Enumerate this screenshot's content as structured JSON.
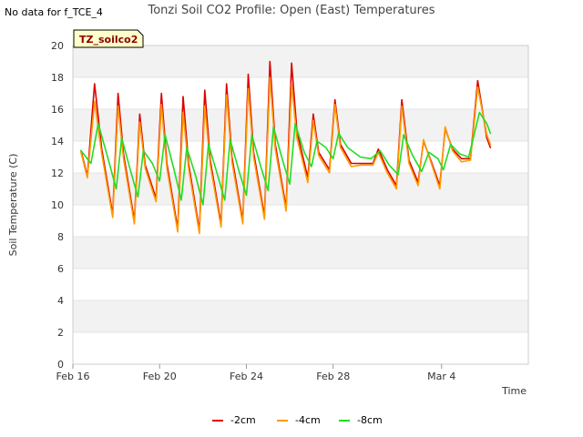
{
  "no_data_message": "No data for f_TCE_4",
  "chart_data": {
    "type": "line",
    "title": "Tonzi Soil CO2 Profile: Open (East) Temperatures",
    "xlabel": "Time",
    "ylabel": "Soil Temperature (C)",
    "badge": "TZ_soilco2",
    "ylim": [
      0,
      20
    ],
    "yticks": [
      0,
      2,
      4,
      6,
      8,
      10,
      12,
      14,
      16,
      18,
      20
    ],
    "xlim": [
      "2024-02-16",
      "2024-03-08"
    ],
    "xticks": [
      {
        "date": "2024-02-16",
        "label": "Feb 16"
      },
      {
        "date": "2024-02-20",
        "label": "Feb 20"
      },
      {
        "date": "2024-02-24",
        "label": "Feb 24"
      },
      {
        "date": "2024-02-28",
        "label": "Feb 28"
      },
      {
        "date": "2024-03-04",
        "label": "Mar 4"
      }
    ],
    "grid": true,
    "legend_position": "bottom",
    "series": [
      {
        "name": "-2cm",
        "color": "#dd0000",
        "points": [
          [
            "2024-02-16T09:00",
            13.4
          ],
          [
            "2024-02-16T16:00",
            11.8
          ],
          [
            "2024-02-17T00:00",
            17.6
          ],
          [
            "2024-02-17T08:00",
            13.5
          ],
          [
            "2024-02-17T20:00",
            9.4
          ],
          [
            "2024-02-18T02:00",
            17.0
          ],
          [
            "2024-02-18T08:00",
            13.2
          ],
          [
            "2024-02-18T20:00",
            9.0
          ],
          [
            "2024-02-19T02:00",
            15.7
          ],
          [
            "2024-02-19T08:00",
            12.5
          ],
          [
            "2024-02-19T20:00",
            10.4
          ],
          [
            "2024-02-20T02:00",
            17.0
          ],
          [
            "2024-02-20T08:00",
            12.6
          ],
          [
            "2024-02-20T20:00",
            8.5
          ],
          [
            "2024-02-21T02:00",
            16.8
          ],
          [
            "2024-02-21T08:00",
            12.6
          ],
          [
            "2024-02-21T20:00",
            8.4
          ],
          [
            "2024-02-22T02:00",
            17.2
          ],
          [
            "2024-02-22T08:00",
            12.8
          ],
          [
            "2024-02-22T20:00",
            8.8
          ],
          [
            "2024-02-23T02:00",
            17.6
          ],
          [
            "2024-02-23T08:00",
            13.0
          ],
          [
            "2024-02-23T20:00",
            9.0
          ],
          [
            "2024-02-24T02:00",
            18.2
          ],
          [
            "2024-02-24T08:00",
            13.3
          ],
          [
            "2024-02-24T20:00",
            9.3
          ],
          [
            "2024-02-25T02:00",
            19.0
          ],
          [
            "2024-02-25T08:00",
            13.8
          ],
          [
            "2024-02-25T20:00",
            9.8
          ],
          [
            "2024-02-26T02:00",
            18.9
          ],
          [
            "2024-02-26T08:00",
            14.6
          ],
          [
            "2024-02-26T20:00",
            11.7
          ],
          [
            "2024-02-27T02:00",
            15.7
          ],
          [
            "2024-02-27T08:00",
            13.3
          ],
          [
            "2024-02-27T20:00",
            12.2
          ],
          [
            "2024-02-28T02:00",
            16.6
          ],
          [
            "2024-02-28T08:00",
            13.8
          ],
          [
            "2024-02-28T20:00",
            12.6
          ],
          [
            "2024-02-29T06:00",
            12.6
          ],
          [
            "2024-02-29T20:00",
            12.6
          ],
          [
            "2024-03-01T02:00",
            13.5
          ],
          [
            "2024-03-01T12:00",
            12.2
          ],
          [
            "2024-03-01T22:00",
            11.2
          ],
          [
            "2024-03-02T04:00",
            16.6
          ],
          [
            "2024-03-02T12:00",
            12.8
          ],
          [
            "2024-03-02T22:00",
            11.4
          ],
          [
            "2024-03-03T04:00",
            14.0
          ],
          [
            "2024-03-03T12:00",
            12.8
          ],
          [
            "2024-03-03T22:00",
            11.2
          ],
          [
            "2024-03-04T04:00",
            14.8
          ],
          [
            "2024-03-04T12:00",
            13.5
          ],
          [
            "2024-03-04T22:00",
            12.9
          ],
          [
            "2024-03-05T08:00",
            12.9
          ],
          [
            "2024-03-05T16:00",
            17.8
          ],
          [
            "2024-03-06T02:00",
            14.2
          ],
          [
            "2024-03-06T06:00",
            13.6
          ]
        ]
      },
      {
        "name": "-4cm",
        "color": "#ff9900",
        "points": [
          [
            "2024-02-16T09:00",
            13.3
          ],
          [
            "2024-02-16T16:00",
            11.7
          ],
          [
            "2024-02-17T00:00",
            16.5
          ],
          [
            "2024-02-17T08:00",
            13.2
          ],
          [
            "2024-02-17T20:00",
            9.2
          ],
          [
            "2024-02-18T02:00",
            16.2
          ],
          [
            "2024-02-18T08:00",
            12.9
          ],
          [
            "2024-02-18T20:00",
            8.8
          ],
          [
            "2024-02-19T02:00",
            15.2
          ],
          [
            "2024-02-19T08:00",
            12.3
          ],
          [
            "2024-02-19T20:00",
            10.2
          ],
          [
            "2024-02-20T02:00",
            16.3
          ],
          [
            "2024-02-20T08:00",
            12.3
          ],
          [
            "2024-02-20T20:00",
            8.3
          ],
          [
            "2024-02-21T02:00",
            15.8
          ],
          [
            "2024-02-21T08:00",
            12.3
          ],
          [
            "2024-02-21T20:00",
            8.2
          ],
          [
            "2024-02-22T02:00",
            16.2
          ],
          [
            "2024-02-22T08:00",
            12.5
          ],
          [
            "2024-02-22T20:00",
            8.6
          ],
          [
            "2024-02-23T02:00",
            16.9
          ],
          [
            "2024-02-23T08:00",
            12.7
          ],
          [
            "2024-02-23T20:00",
            8.8
          ],
          [
            "2024-02-24T02:00",
            17.3
          ],
          [
            "2024-02-24T08:00",
            13.0
          ],
          [
            "2024-02-24T20:00",
            9.1
          ],
          [
            "2024-02-25T02:00",
            18.0
          ],
          [
            "2024-02-25T08:00",
            13.5
          ],
          [
            "2024-02-25T20:00",
            9.6
          ],
          [
            "2024-02-26T02:00",
            17.6
          ],
          [
            "2024-02-26T08:00",
            14.2
          ],
          [
            "2024-02-26T20:00",
            11.4
          ],
          [
            "2024-02-27T02:00",
            15.3
          ],
          [
            "2024-02-27T08:00",
            13.1
          ],
          [
            "2024-02-27T20:00",
            12.0
          ],
          [
            "2024-02-28T02:00",
            16.3
          ],
          [
            "2024-02-28T08:00",
            13.6
          ],
          [
            "2024-02-28T20:00",
            12.4
          ],
          [
            "2024-02-29T06:00",
            12.5
          ],
          [
            "2024-02-29T20:00",
            12.5
          ],
          [
            "2024-03-01T02:00",
            13.3
          ],
          [
            "2024-03-01T12:00",
            12.0
          ],
          [
            "2024-03-01T22:00",
            11.0
          ],
          [
            "2024-03-02T04:00",
            16.2
          ],
          [
            "2024-03-02T12:00",
            12.6
          ],
          [
            "2024-03-02T22:00",
            11.2
          ],
          [
            "2024-03-03T04:00",
            14.1
          ],
          [
            "2024-03-03T12:00",
            12.7
          ],
          [
            "2024-03-03T22:00",
            11.0
          ],
          [
            "2024-03-04T04:00",
            14.9
          ],
          [
            "2024-03-04T12:00",
            13.4
          ],
          [
            "2024-03-04T22:00",
            12.7
          ],
          [
            "2024-03-05T08:00",
            12.8
          ],
          [
            "2024-03-05T16:00",
            17.4
          ],
          [
            "2024-03-06T02:00",
            14.4
          ],
          [
            "2024-03-06T06:00",
            13.8
          ]
        ]
      },
      {
        "name": "-8cm",
        "color": "#22dd22",
        "points": [
          [
            "2024-02-16T09:00",
            13.4
          ],
          [
            "2024-02-16T20:00",
            12.6
          ],
          [
            "2024-02-17T04:00",
            15.1
          ],
          [
            "2024-02-17T14:00",
            13.1
          ],
          [
            "2024-02-18T00:00",
            11.0
          ],
          [
            "2024-02-18T06:00",
            14.2
          ],
          [
            "2024-02-18T16:00",
            12.1
          ],
          [
            "2024-02-19T00:00",
            10.5
          ],
          [
            "2024-02-19T06:00",
            13.4
          ],
          [
            "2024-02-19T16:00",
            12.6
          ],
          [
            "2024-02-20T00:00",
            11.5
          ],
          [
            "2024-02-20T06:00",
            14.4
          ],
          [
            "2024-02-20T16:00",
            12.2
          ],
          [
            "2024-02-21T00:00",
            10.3
          ],
          [
            "2024-02-21T06:00",
            13.6
          ],
          [
            "2024-02-21T16:00",
            11.8
          ],
          [
            "2024-02-22T00:00",
            10.0
          ],
          [
            "2024-02-22T06:00",
            13.8
          ],
          [
            "2024-02-22T16:00",
            11.9
          ],
          [
            "2024-02-23T00:00",
            10.3
          ],
          [
            "2024-02-23T06:00",
            14.1
          ],
          [
            "2024-02-23T16:00",
            12.1
          ],
          [
            "2024-02-24T00:00",
            10.6
          ],
          [
            "2024-02-24T06:00",
            14.4
          ],
          [
            "2024-02-24T16:00",
            12.4
          ],
          [
            "2024-02-25T00:00",
            10.9
          ],
          [
            "2024-02-25T06:00",
            14.9
          ],
          [
            "2024-02-25T16:00",
            12.8
          ],
          [
            "2024-02-26T00:00",
            11.3
          ],
          [
            "2024-02-26T06:00",
            15.1
          ],
          [
            "2024-02-26T16:00",
            13.3
          ],
          [
            "2024-02-27T00:00",
            12.4
          ],
          [
            "2024-02-27T06:00",
            14.0
          ],
          [
            "2024-02-27T16:00",
            13.6
          ],
          [
            "2024-02-28T00:00",
            12.9
          ],
          [
            "2024-02-28T06:00",
            14.5
          ],
          [
            "2024-02-28T16:00",
            13.6
          ],
          [
            "2024-02-29T06:00",
            13.0
          ],
          [
            "2024-02-29T18:00",
            12.9
          ],
          [
            "2024-03-01T04:00",
            13.4
          ],
          [
            "2024-03-01T14:00",
            12.5
          ],
          [
            "2024-03-02T00:00",
            11.9
          ],
          [
            "2024-03-02T06:00",
            14.4
          ],
          [
            "2024-03-02T16:00",
            13.1
          ],
          [
            "2024-03-03T02:00",
            12.1
          ],
          [
            "2024-03-03T10:00",
            13.3
          ],
          [
            "2024-03-03T20:00",
            12.9
          ],
          [
            "2024-03-04T02:00",
            12.2
          ],
          [
            "2024-03-04T10:00",
            13.8
          ],
          [
            "2024-03-04T20:00",
            13.2
          ],
          [
            "2024-03-05T06:00",
            13.0
          ],
          [
            "2024-03-05T18:00",
            15.8
          ],
          [
            "2024-03-06T02:00",
            15.1
          ],
          [
            "2024-03-06T06:00",
            14.5
          ]
        ]
      }
    ]
  }
}
